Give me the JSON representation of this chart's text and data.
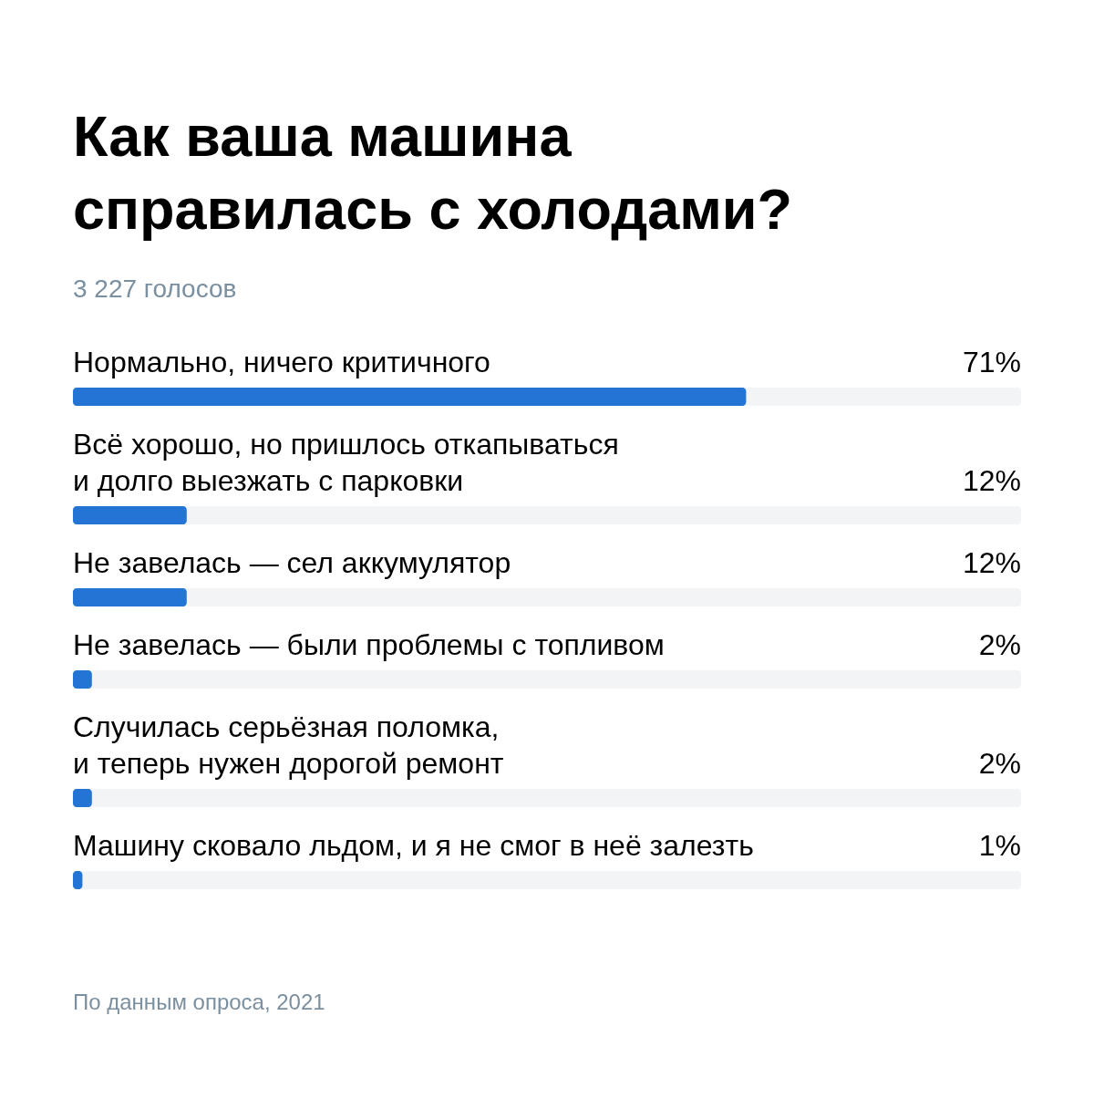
{
  "chart_data": {
    "type": "bar",
    "orientation": "horizontal",
    "title": "Как ваша машина\nсправилась с холодами?",
    "subtitle": "3 227 голосов",
    "categories": [
      "Нормально, ничего критичного",
      "Всё хорошо, но пришлось откапываться\nи долго выезжать с парковки",
      "Не завелась — сел аккумулятор",
      "Не завелась — были проблемы с топливом",
      "Случилась серьёзная поломка,\nи теперь нужен дорогой ремонт",
      "Машину сковало льдом, и я не смог в неё залезть"
    ],
    "values": [
      71,
      12,
      12,
      2,
      2,
      1
    ],
    "value_labels": [
      "71%",
      "12%",
      "12%",
      "2%",
      "2%",
      "1%"
    ],
    "color": "#2374d4",
    "xlim": [
      0,
      100
    ],
    "bands": [
      {
        "axis": "x",
        "from": 0,
        "to": 100,
        "color": "#f3f4f6"
      }
    ],
    "annotations": [
      "По данным опроса, 2021"
    ]
  }
}
